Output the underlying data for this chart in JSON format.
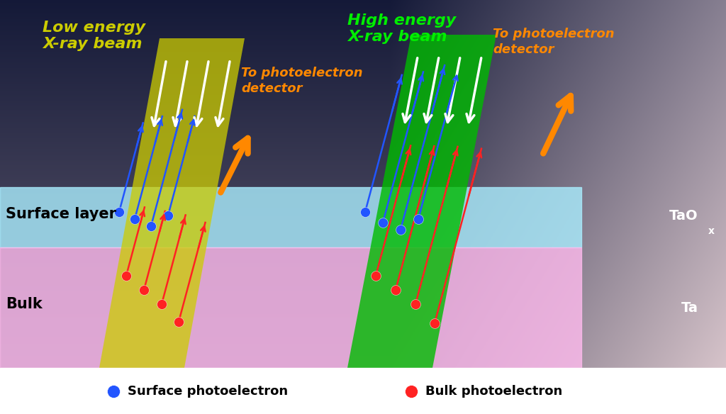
{
  "beam1_color": "#cccc00",
  "beam2_color": "#00bb00",
  "beam1_label": "Low energy\nX-ray beam",
  "beam2_label": "High energy\nX-ray beam",
  "detector_label_left": "To photoelectron\ndetector",
  "detector_label_right": "To photoelectron\ndetector",
  "detector_color": "#ff8800",
  "surface_label": "Surface layer",
  "bulk_label": "Bulk",
  "legend_surface": "Surface photoelectron",
  "legend_bulk": "Bulk photoelectron",
  "blue_color": "#2255ff",
  "red_color": "#ff2222",
  "surface_layer_color": "#aaeeff",
  "bulk_color": "#ffbbee",
  "tao_label": "TaO",
  "tao_sub": "x",
  "ta_label": "Ta"
}
